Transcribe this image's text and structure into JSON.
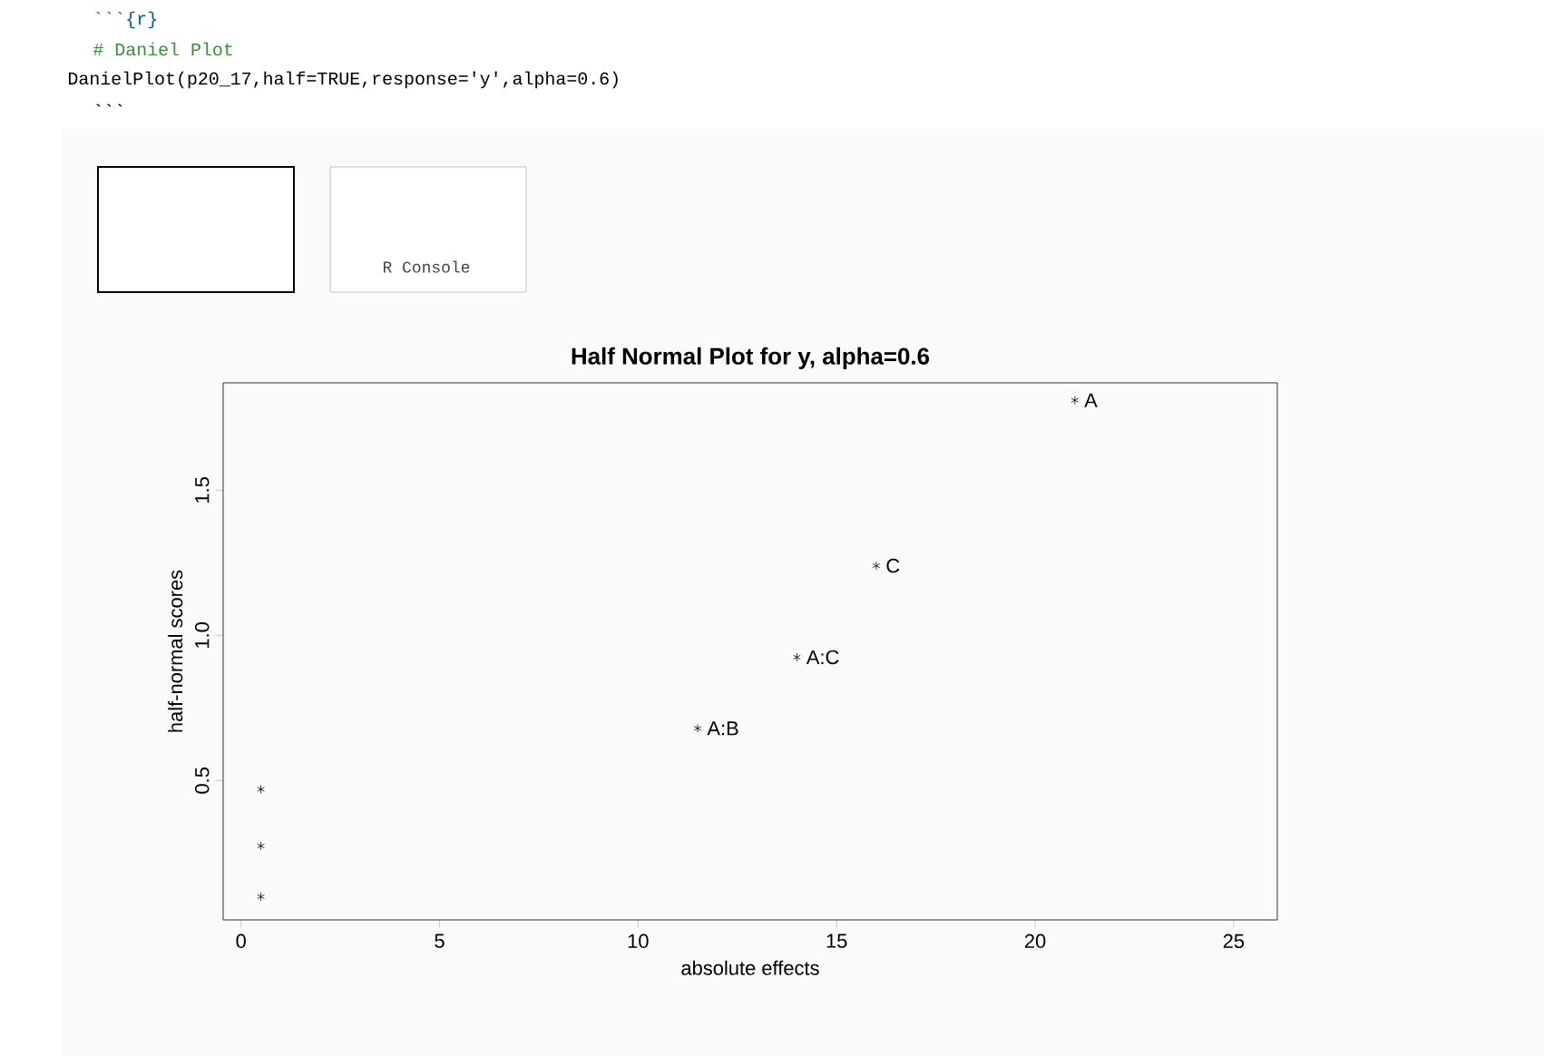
{
  "chart_data": {
    "type": "scatter",
    "title": "Half Normal Plot for y, alpha=0.6",
    "xlabel": "absolute effects",
    "ylabel": "half-normal scores",
    "series": [
      {
        "x": [
          0.5,
          0.5,
          0.5,
          11.5,
          14.0,
          16.0,
          21.0
        ],
        "values": [
          0.1,
          0.275,
          0.47,
          0.68,
          0.925,
          1.24,
          1.81
        ],
        "color": "#000000"
      }
    ],
    "marker": "cross",
    "xlim": [
      -0.45,
      26.1
    ],
    "ylim": [
      0.02,
      1.87
    ],
    "xticks": [
      0,
      5,
      10,
      15,
      20,
      25
    ],
    "yticks": [
      {
        "value": 0.5,
        "label": "0.5"
      },
      {
        "value": 1,
        "label": "1.0"
      },
      {
        "value": 1.5,
        "label": "1.5"
      }
    ],
    "annotations": [
      {
        "text": "A",
        "x": 21.0,
        "y": 1.81
      },
      {
        "text": "C",
        "x": 16.0,
        "y": 1.24
      },
      {
        "text": "A:C",
        "x": 14.0,
        "y": 0.925
      },
      {
        "text": "A:B",
        "x": 11.5,
        "y": 0.68
      },
      "```{r}",
      "# Daniel Plot",
      "DanielPlot(p20_17,half=TRUE,response='y',alpha=0.6)",
      "```",
      "R Console"
    ]
  }
}
